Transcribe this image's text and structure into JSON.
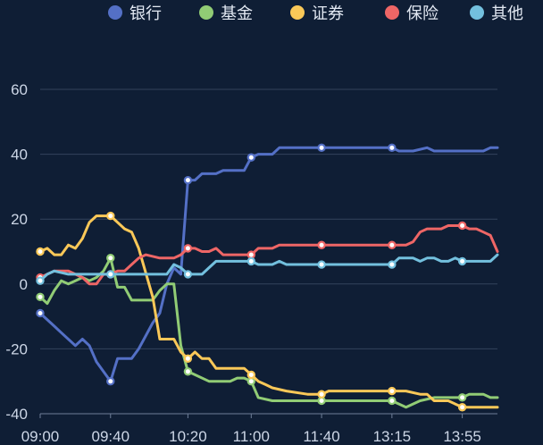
{
  "chart_data": {
    "type": "line",
    "title": "",
    "xlabel": "",
    "ylabel": "",
    "x_tick_labels": [
      "09:00",
      "09:40",
      "10:20",
      "11:00",
      "11:40",
      "13:15",
      "13:55"
    ],
    "ylim": [
      -40,
      60
    ],
    "y_ticks": [
      -40,
      -20,
      0,
      20,
      40,
      60
    ],
    "grid": true,
    "legend_position": "top-right",
    "x_count": 66,
    "series": [
      {
        "name": "银行",
        "color": "#5470c6",
        "points": [
          [
            0,
            -9
          ],
          [
            2,
            -13
          ],
          [
            3,
            -15
          ],
          [
            5,
            -19
          ],
          [
            6,
            -17
          ],
          [
            7,
            -19
          ],
          [
            8,
            -24
          ],
          [
            10,
            -30
          ],
          [
            11,
            -23
          ],
          [
            13,
            -23
          ],
          [
            14,
            -20
          ],
          [
            16,
            -12
          ],
          [
            17,
            -9
          ],
          [
            18,
            0
          ],
          [
            19,
            5
          ],
          [
            20,
            3
          ],
          [
            21,
            32
          ],
          [
            22,
            32
          ],
          [
            23,
            34
          ],
          [
            25,
            34
          ],
          [
            26,
            35
          ],
          [
            29,
            35
          ],
          [
            30,
            39
          ],
          [
            31,
            40
          ],
          [
            33,
            40
          ],
          [
            34,
            42
          ],
          [
            37,
            42
          ],
          [
            40,
            42
          ],
          [
            45,
            42
          ],
          [
            50,
            42
          ],
          [
            51,
            41
          ],
          [
            53,
            41
          ],
          [
            55,
            42
          ],
          [
            56,
            41
          ],
          [
            59,
            41
          ],
          [
            62,
            41
          ],
          [
            63,
            41
          ],
          [
            64,
            42
          ],
          [
            65,
            42
          ]
        ],
        "markers": [
          0,
          10,
          21,
          30,
          40,
          50,
          60
        ]
      },
      {
        "name": "基金",
        "color": "#91cc75",
        "points": [
          [
            0,
            -4
          ],
          [
            1,
            -6
          ],
          [
            2,
            -2
          ],
          [
            3,
            1
          ],
          [
            4,
            0
          ],
          [
            5,
            1
          ],
          [
            6,
            2
          ],
          [
            7,
            1
          ],
          [
            8,
            2
          ],
          [
            9,
            4
          ],
          [
            10,
            8
          ],
          [
            11,
            -1
          ],
          [
            12,
            -1
          ],
          [
            13,
            -5
          ],
          [
            15,
            -5
          ],
          [
            16,
            -5
          ],
          [
            17,
            -2
          ],
          [
            18,
            0
          ],
          [
            19,
            0
          ],
          [
            20,
            -19
          ],
          [
            21,
            -27
          ],
          [
            22,
            -28
          ],
          [
            24,
            -30
          ],
          [
            25,
            -30
          ],
          [
            27,
            -30
          ],
          [
            28,
            -29
          ],
          [
            29,
            -29
          ],
          [
            30,
            -30
          ],
          [
            31,
            -35
          ],
          [
            33,
            -36
          ],
          [
            35,
            -36
          ],
          [
            36,
            -36
          ],
          [
            38,
            -36
          ],
          [
            40,
            -36
          ],
          [
            44,
            -36
          ],
          [
            46,
            -36
          ],
          [
            50,
            -36
          ],
          [
            51,
            -37
          ],
          [
            52,
            -38
          ],
          [
            54,
            -36
          ],
          [
            56,
            -35
          ],
          [
            58,
            -35
          ],
          [
            60,
            -35
          ],
          [
            61,
            -34
          ],
          [
            62,
            -34
          ],
          [
            63,
            -34
          ],
          [
            64,
            -35
          ],
          [
            65,
            -35
          ]
        ],
        "markers": [
          0,
          10,
          21,
          30,
          40,
          50,
          60
        ]
      },
      {
        "name": "证券",
        "color": "#fac858",
        "points": [
          [
            0,
            10
          ],
          [
            1,
            11
          ],
          [
            2,
            9
          ],
          [
            3,
            9
          ],
          [
            4,
            12
          ],
          [
            5,
            11
          ],
          [
            6,
            14
          ],
          [
            7,
            19
          ],
          [
            8,
            21
          ],
          [
            10,
            21
          ],
          [
            11,
            19
          ],
          [
            12,
            17
          ],
          [
            13,
            16
          ],
          [
            14,
            11
          ],
          [
            16,
            -4
          ],
          [
            17,
            -17
          ],
          [
            19,
            -17
          ],
          [
            20,
            -21
          ],
          [
            21,
            -23
          ],
          [
            22,
            -21
          ],
          [
            23,
            -23
          ],
          [
            24,
            -23
          ],
          [
            25,
            -26
          ],
          [
            27,
            -26
          ],
          [
            29,
            -26
          ],
          [
            30,
            -28
          ],
          [
            31,
            -30
          ],
          [
            32,
            -31
          ],
          [
            33,
            -32
          ],
          [
            35,
            -33
          ],
          [
            38,
            -34
          ],
          [
            39,
            -34
          ],
          [
            40,
            -34
          ],
          [
            41,
            -33
          ],
          [
            45,
            -33
          ],
          [
            48,
            -33
          ],
          [
            50,
            -33
          ],
          [
            52,
            -33
          ],
          [
            54,
            -34
          ],
          [
            55,
            -34
          ],
          [
            56,
            -36
          ],
          [
            58,
            -36
          ],
          [
            59,
            -37
          ],
          [
            60,
            -38
          ],
          [
            62,
            -38
          ],
          [
            65,
            -38
          ]
        ],
        "markers": [
          0,
          10,
          21,
          30,
          40,
          50,
          60
        ]
      },
      {
        "name": "保险",
        "color": "#ee6666",
        "points": [
          [
            0,
            2
          ],
          [
            1,
            3
          ],
          [
            2,
            4
          ],
          [
            4,
            4
          ],
          [
            5,
            3
          ],
          [
            6,
            2
          ],
          [
            7,
            0
          ],
          [
            8,
            0
          ],
          [
            9,
            3
          ],
          [
            10,
            3
          ],
          [
            11,
            4
          ],
          [
            12,
            4
          ],
          [
            13,
            6
          ],
          [
            14,
            8
          ],
          [
            15,
            9
          ],
          [
            17,
            8
          ],
          [
            19,
            8
          ],
          [
            20,
            9
          ],
          [
            21,
            11
          ],
          [
            22,
            11
          ],
          [
            23,
            10
          ],
          [
            24,
            10
          ],
          [
            25,
            11
          ],
          [
            26,
            9
          ],
          [
            28,
            9
          ],
          [
            30,
            9
          ],
          [
            31,
            11
          ],
          [
            33,
            11
          ],
          [
            34,
            12
          ],
          [
            36,
            12
          ],
          [
            38,
            12
          ],
          [
            40,
            12
          ],
          [
            44,
            12
          ],
          [
            50,
            12
          ],
          [
            52,
            12
          ],
          [
            53,
            13
          ],
          [
            54,
            16
          ],
          [
            55,
            17
          ],
          [
            57,
            17
          ],
          [
            58,
            18
          ],
          [
            60,
            18
          ],
          [
            61,
            17
          ],
          [
            62,
            17
          ],
          [
            63,
            16
          ],
          [
            64,
            15
          ],
          [
            65,
            10
          ]
        ],
        "markers": [
          0,
          10,
          21,
          30,
          40,
          50,
          60
        ]
      },
      {
        "name": "其他",
        "color": "#73c0de",
        "points": [
          [
            0,
            1
          ],
          [
            1,
            3
          ],
          [
            2,
            4
          ],
          [
            4,
            3
          ],
          [
            6,
            3
          ],
          [
            8,
            3
          ],
          [
            10,
            3
          ],
          [
            12,
            3
          ],
          [
            14,
            3
          ],
          [
            16,
            3
          ],
          [
            18,
            3
          ],
          [
            19,
            6
          ],
          [
            20,
            5
          ],
          [
            21,
            3
          ],
          [
            23,
            3
          ],
          [
            24,
            5
          ],
          [
            25,
            7
          ],
          [
            27,
            7
          ],
          [
            30,
            7
          ],
          [
            31,
            6
          ],
          [
            33,
            6
          ],
          [
            34,
            7
          ],
          [
            35,
            6
          ],
          [
            38,
            6
          ],
          [
            40,
            6
          ],
          [
            44,
            6
          ],
          [
            48,
            6
          ],
          [
            50,
            6
          ],
          [
            51,
            8
          ],
          [
            53,
            8
          ],
          [
            54,
            7
          ],
          [
            55,
            8
          ],
          [
            56,
            8
          ],
          [
            57,
            7
          ],
          [
            58,
            7
          ],
          [
            59,
            8
          ],
          [
            60,
            7
          ],
          [
            62,
            7
          ],
          [
            64,
            7
          ],
          [
            65,
            9
          ]
        ],
        "markers": [
          0,
          10,
          21,
          30,
          40,
          50,
          60
        ]
      }
    ]
  }
}
